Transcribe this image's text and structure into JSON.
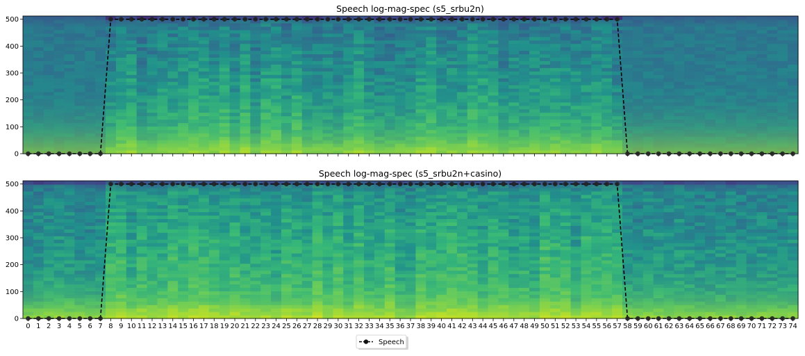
{
  "chart_data": [
    {
      "type": "heatmap",
      "title": "Speech log-mag-spec (s5_srbu2n)",
      "y_ticks": [
        "0",
        "100",
        "200",
        "300",
        "400",
        "500"
      ],
      "ylim": [
        0,
        512
      ],
      "xlim": [
        -0.5,
        74.5
      ],
      "show_x_tick_labels": false
    },
    {
      "type": "heatmap",
      "title": "Speech log-mag-spec (s5_srbu2n+casino)",
      "y_ticks": [
        "0",
        "100",
        "200",
        "300",
        "400",
        "500"
      ],
      "ylim": [
        0,
        512
      ],
      "xlim": [
        -0.5,
        74.5
      ],
      "show_x_tick_labels": true
    }
  ],
  "speech_series": {
    "name": "Speech",
    "color": "#000000",
    "frames": [
      0,
      1,
      2,
      3,
      4,
      5,
      6,
      7,
      8,
      9,
      10,
      11,
      12,
      13,
      14,
      15,
      16,
      17,
      18,
      19,
      20,
      21,
      22,
      23,
      24,
      25,
      26,
      27,
      28,
      29,
      30,
      31,
      32,
      33,
      34,
      35,
      36,
      37,
      38,
      39,
      40,
      41,
      42,
      43,
      44,
      45,
      46,
      47,
      48,
      49,
      50,
      51,
      52,
      53,
      54,
      55,
      56,
      57,
      58,
      59,
      60,
      61,
      62,
      63,
      64,
      65,
      66,
      67,
      68,
      69,
      70,
      71,
      72,
      73,
      74
    ],
    "values": [
      0,
      0,
      0,
      0,
      0,
      0,
      0,
      0,
      500,
      500,
      500,
      500,
      500,
      500,
      500,
      500,
      500,
      500,
      500,
      500,
      500,
      500,
      500,
      500,
      500,
      500,
      500,
      500,
      500,
      500,
      500,
      500,
      500,
      500,
      500,
      500,
      500,
      500,
      500,
      500,
      500,
      500,
      500,
      500,
      500,
      500,
      500,
      500,
      500,
      500,
      500,
      500,
      500,
      500,
      500,
      500,
      500,
      500,
      0,
      0,
      0,
      0,
      0,
      0,
      0,
      0,
      0,
      0,
      0,
      0,
      0,
      0,
      0,
      0,
      0
    ]
  },
  "legend": {
    "label": "Speech"
  },
  "colors": {
    "low": "#31688e",
    "mid": "#35b779",
    "high": "#d5e21a"
  }
}
